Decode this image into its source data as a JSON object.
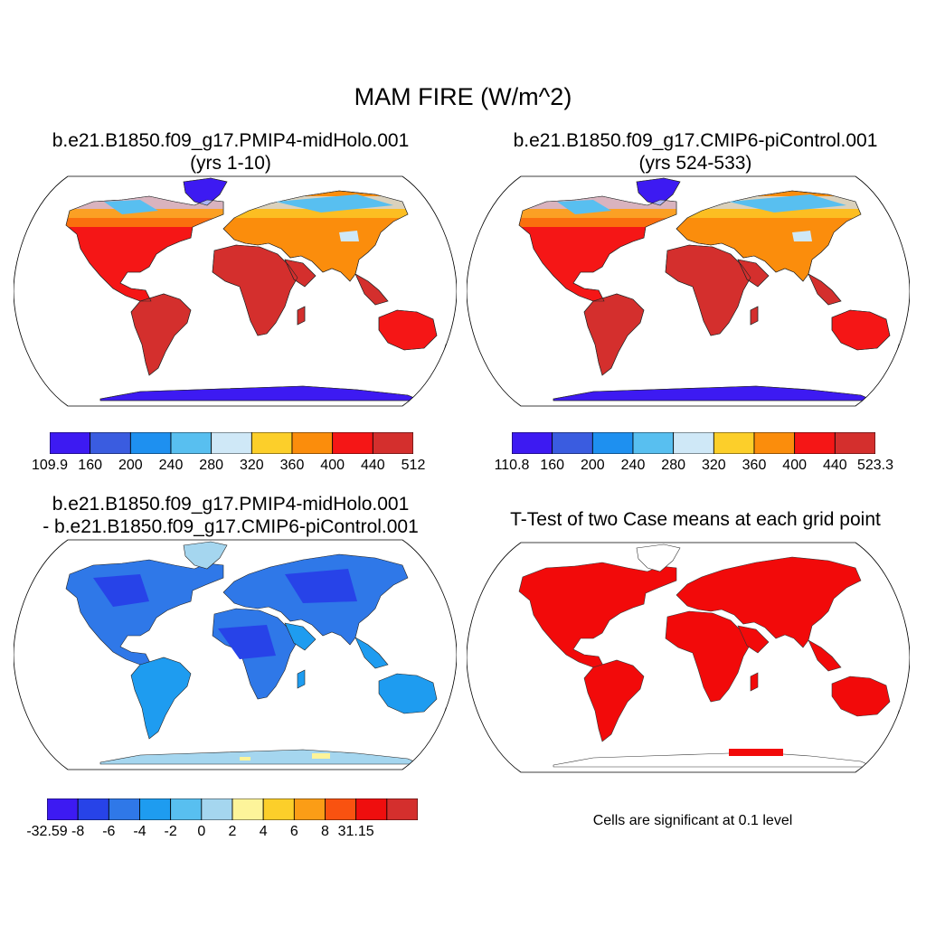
{
  "figure": {
    "title": "MAM FIRE (W/m^2)"
  },
  "panels": [
    {
      "id": "case",
      "title_line1": "b.e21.B1850.f09_g17.PMIP4-midHolo.001",
      "title_line2": "(yrs 1-10)",
      "colors": [
        "#3d1af2",
        "#3a5ce0",
        "#1e90f0",
        "#58bff0",
        "#cfe8f7",
        "#fccf2a",
        "#fb8d0c",
        "#f51616",
        "#d42f2d"
      ],
      "palette": {
        "ice": "#3d1af2",
        "cold": "#3a5ce0",
        "cool": "#1e90f0",
        "mild": "#58bff0",
        "pale": "#cfe8f7",
        "warm": "#fccf2a",
        "orange": "#fb8d0c",
        "hot": "#f51616",
        "hottest": "#d42f2d"
      },
      "colorbar_labels": [
        "109.9",
        "160",
        "200",
        "240",
        "280",
        "320",
        "360",
        "400",
        "440",
        "512"
      ]
    },
    {
      "id": "control",
      "title_line1": "b.e21.B1850.f09_g17.CMIP6-piControl.001",
      "title_line2": "(yrs 524-533)",
      "colors": [
        "#3d1af2",
        "#3a5ce0",
        "#1e90f0",
        "#58bff0",
        "#cfe8f7",
        "#fccf2a",
        "#fb8d0c",
        "#f51616",
        "#d42f2d"
      ],
      "palette": {
        "ice": "#3d1af2",
        "cold": "#3a5ce0",
        "cool": "#1e90f0",
        "mild": "#58bff0",
        "pale": "#cfe8f7",
        "warm": "#fccf2a",
        "orange": "#fb8d0c",
        "hot": "#f51616",
        "hottest": "#d42f2d"
      },
      "colorbar_labels": [
        "110.8",
        "160",
        "200",
        "240",
        "280",
        "320",
        "360",
        "400",
        "440",
        "523.3"
      ]
    },
    {
      "id": "difference",
      "title_line1": "b.e21.B1850.f09_g17.PMIP4-midHolo.001",
      "title_line2": "- b.e21.B1850.f09_g17.CMIP6-piControl.001",
      "colors": [
        "#3d1af2",
        "#2743e8",
        "#2f78e8",
        "#1e9cf0",
        "#58bff0",
        "#a5d6ef",
        "#fdf49a",
        "#fccf2a",
        "#fb9d16",
        "#f95210",
        "#ef0e0e",
        "#d42f2d"
      ],
      "colorbar_labels": [
        "-32.59",
        "-8",
        "-6",
        "-4",
        "-2",
        "0",
        "2",
        "4",
        "6",
        "8",
        "31.15"
      ]
    },
    {
      "id": "ttest",
      "title_line1": "T-Test of two Case means at each grid point",
      "significance_color": "#f20a0a",
      "note": "Cells are significant at 0.1 level"
    }
  ]
}
